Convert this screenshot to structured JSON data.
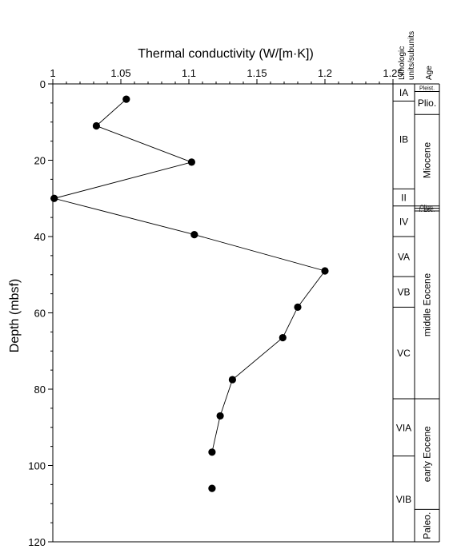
{
  "chart_data": {
    "type": "line",
    "xlabel": "Thermal conductivity (W/[m·K])",
    "ylabel": "Depth (mbsf)",
    "xlim": [
      1,
      1.25
    ],
    "ylim": [
      0,
      120
    ],
    "x_ticks": [
      1,
      1.05,
      1.1,
      1.15,
      1.2,
      1.25
    ],
    "x_tick_labels": [
      "1",
      "1.05",
      "1.1",
      "1.15",
      "1.2",
      "1.25"
    ],
    "y_ticks": [
      0,
      20,
      40,
      60,
      80,
      100,
      120
    ],
    "y_tick_labels": [
      "0",
      "20",
      "40",
      "60",
      "80",
      "100",
      "120"
    ],
    "series": [
      {
        "x": [
          1.054,
          1.032,
          1.102,
          1.001,
          1.104,
          1.2,
          1.18,
          1.169,
          1.132,
          1.123,
          1.117,
          1.117
        ],
        "y": [
          4,
          11,
          20.5,
          30,
          39.5,
          49,
          58.5,
          66.5,
          77.5,
          87,
          96.5,
          106
        ]
      }
    ],
    "line_connects_first_n_points": 11,
    "lithologic_units": {
      "header": [
        "Lithologic",
        "units/subunits"
      ],
      "units": [
        {
          "label": "IA",
          "top": 0,
          "bottom": 4.5
        },
        {
          "label": "IB",
          "top": 4.5,
          "bottom": 27.5
        },
        {
          "label": "II",
          "top": 27.5,
          "bottom": 32
        },
        {
          "label": "IV",
          "top": 32,
          "bottom": 40
        },
        {
          "label": "VA",
          "top": 40,
          "bottom": 50.5
        },
        {
          "label": "VB",
          "top": 50.5,
          "bottom": 58.5
        },
        {
          "label": "VC",
          "top": 58.5,
          "bottom": 82.5
        },
        {
          "label": "VIA",
          "top": 82.5,
          "bottom": 97.5
        },
        {
          "label": "VIB",
          "top": 97.5,
          "bottom": 120
        }
      ]
    },
    "age": {
      "header": "Age",
      "intervals": [
        {
          "label": "Pleist.",
          "top": 0,
          "bottom": 2,
          "size": "tiny"
        },
        {
          "label": "Plio.",
          "top": 2,
          "bottom": 8,
          "size": "small"
        },
        {
          "label": "Miocene",
          "top": 8,
          "bottom": 32,
          "size": "rotated"
        },
        {
          "label": "Oligo.",
          "top": 32,
          "bottom": 32.6,
          "size": "tiny"
        },
        {
          "label": "l. Eoc.",
          "top": 32.6,
          "bottom": 33.3,
          "size": "tiny"
        },
        {
          "label": "middle Eocene",
          "top": 33.3,
          "bottom": 82.5,
          "size": "rotated"
        },
        {
          "label": "early Eocene",
          "top": 82.5,
          "bottom": 111.5,
          "size": "rotated"
        },
        {
          "label": "Paleo.",
          "top": 111.5,
          "bottom": 120,
          "size": "rotated"
        }
      ]
    }
  }
}
